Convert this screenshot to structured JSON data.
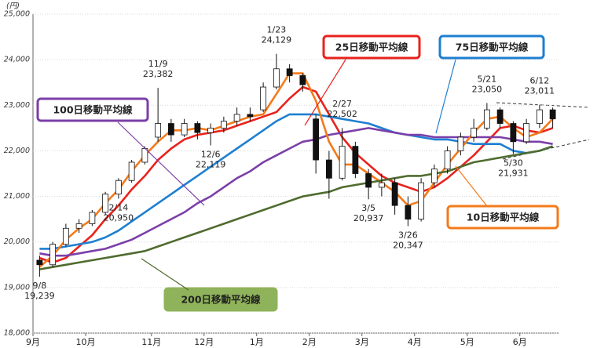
{
  "chart_data": {
    "type": "candlestick",
    "y_label": "(円)",
    "ylim": [
      18000,
      25000
    ],
    "yticks": [
      {
        "value": 18000,
        "label": "18,000"
      },
      {
        "value": 19000,
        "label": "19,000"
      },
      {
        "value": 20000,
        "label": "20,000"
      },
      {
        "value": 21000,
        "label": "21,000"
      },
      {
        "value": 22000,
        "label": "22,000"
      },
      {
        "value": 23000,
        "label": "23,000"
      },
      {
        "value": 24000,
        "label": "24,000"
      },
      {
        "value": 25000,
        "label": "25,000"
      }
    ],
    "grid": true,
    "categories": [
      "9月",
      null,
      null,
      null,
      "10月",
      null,
      null,
      null,
      null,
      "11月",
      null,
      null,
      null,
      "12月",
      null,
      null,
      null,
      "1月",
      null,
      null,
      null,
      "2月",
      null,
      null,
      null,
      "3月",
      null,
      null,
      null,
      "4月",
      null,
      null,
      null,
      "5月",
      null,
      null,
      null,
      "6月",
      null,
      null
    ],
    "ohlc": [
      [
        19600,
        19700,
        19239,
        19500
      ],
      [
        19500,
        20000,
        19450,
        19950
      ],
      [
        19950,
        20400,
        19900,
        20300
      ],
      [
        20300,
        20500,
        20200,
        20400
      ],
      [
        20400,
        20700,
        20350,
        20650
      ],
      [
        20650,
        21100,
        20600,
        21050
      ],
      [
        21050,
        21400,
        20950,
        21350
      ],
      [
        21350,
        21800,
        21300,
        21750
      ],
      [
        21750,
        22100,
        21700,
        22050
      ],
      [
        22300,
        23382,
        22200,
        22600
      ],
      [
        22600,
        22700,
        22200,
        22350
      ],
      [
        22350,
        22700,
        22300,
        22600
      ],
      [
        22600,
        22650,
        22250,
        22400
      ],
      [
        22400,
        22600,
        22119,
        22500
      ],
      [
        22500,
        22750,
        22400,
        22650
      ],
      [
        22650,
        22950,
        22550,
        22800
      ],
      [
        22800,
        22950,
        22650,
        22750
      ],
      [
        22900,
        23500,
        22850,
        23400
      ],
      [
        23400,
        24129,
        23350,
        23800
      ],
      [
        23800,
        23900,
        23500,
        23650
      ],
      [
        23650,
        23700,
        23300,
        23450
      ],
      [
        22700,
        22800,
        21500,
        21800
      ],
      [
        21800,
        22000,
        20950,
        21400
      ],
      [
        21400,
        22502,
        21350,
        22100
      ],
      [
        22100,
        22200,
        21400,
        21500
      ],
      [
        21500,
        21600,
        20937,
        21200
      ],
      [
        21200,
        21500,
        21000,
        21300
      ],
      [
        21300,
        21400,
        20600,
        20800
      ],
      [
        20800,
        21000,
        20347,
        20500
      ],
      [
        20500,
        21400,
        20450,
        21300
      ],
      [
        21300,
        21700,
        21200,
        21600
      ],
      [
        21600,
        22100,
        21500,
        22000
      ],
      [
        22000,
        22400,
        21900,
        22300
      ],
      [
        22300,
        22700,
        22200,
        22500
      ],
      [
        22500,
        23050,
        22450,
        22900
      ],
      [
        22900,
        22950,
        22500,
        22600
      ],
      [
        22600,
        22650,
        21931,
        22200
      ],
      [
        22200,
        22700,
        22150,
        22600
      ],
      [
        22600,
        23011,
        22500,
        22900
      ],
      [
        22900,
        22950,
        22500,
        22700
      ]
    ],
    "series": [
      {
        "name": "25日移動平均線",
        "color": "#e8231c",
        "values": [
          19650,
          19550,
          19650,
          19900,
          20150,
          20500,
          20800,
          21150,
          21450,
          21800,
          22050,
          22250,
          22350,
          22400,
          22450,
          22550,
          22650,
          22750,
          22850,
          23150,
          23400,
          23300,
          22800,
          22300,
          21950,
          21700,
          21450,
          21300,
          21200,
          21100,
          21200,
          21400,
          21650,
          21900,
          22200,
          22500,
          22550,
          22450,
          22400,
          22500
        ]
      },
      {
        "name": "75日移動平均線",
        "color": "#1e7fd0",
        "values": [
          19850,
          19850,
          19900,
          19950,
          20000,
          20100,
          20250,
          20450,
          20650,
          20850,
          21050,
          21250,
          21450,
          21650,
          21850,
          22050,
          22250,
          22450,
          22650,
          22800,
          22800,
          22800,
          22750,
          22700,
          22650,
          22600,
          22500,
          22400,
          22350,
          22300,
          22250,
          22250,
          22200,
          22150,
          22150,
          22150,
          22000,
          21950,
          22000,
          22100
        ]
      },
      {
        "name": "100日移動平均線",
        "color": "#7b3fa8",
        "values": [
          19750,
          19700,
          19700,
          19750,
          19800,
          19850,
          19950,
          20050,
          20200,
          20350,
          20500,
          20650,
          20850,
          21000,
          21200,
          21400,
          21550,
          21750,
          21900,
          22050,
          22200,
          22250,
          22350,
          22400,
          22450,
          22500,
          22450,
          22400,
          22350,
          22350,
          22300,
          22300,
          22300,
          22300,
          22300,
          22300,
          22250,
          22200,
          22200,
          22150
        ]
      },
      {
        "name": "10日移動平均線",
        "color": "#f47a1a",
        "values": [
          19450,
          19700,
          20050,
          20300,
          20500,
          20850,
          21150,
          21550,
          21900,
          22200,
          22450,
          22450,
          22500,
          22450,
          22550,
          22650,
          22750,
          22800,
          23250,
          23700,
          23700,
          23100,
          22200,
          21700,
          21700,
          21500,
          21300,
          21100,
          20800,
          20900,
          21300,
          21700,
          22050,
          22400,
          22700,
          22750,
          22500,
          22300,
          22400,
          22700
        ]
      },
      {
        "name": "200日移動平均線",
        "color": "#4f6b2e",
        "values": [
          19400,
          19450,
          19500,
          19550,
          19600,
          19650,
          19700,
          19750,
          19800,
          19900,
          20000,
          20100,
          20200,
          20300,
          20400,
          20500,
          20600,
          20700,
          20800,
          20900,
          21000,
          21050,
          21100,
          21200,
          21250,
          21300,
          21350,
          21400,
          21450,
          21450,
          21500,
          21550,
          21650,
          21750,
          21800,
          21850,
          21900,
          21950,
          22000,
          22100
        ]
      }
    ],
    "annotations": [
      {
        "date": "9/8",
        "value": 19239,
        "label": "19,239"
      },
      {
        "date": "11/9",
        "value": 23382,
        "label": "23,382"
      },
      {
        "date": "12/6",
        "value": 22119,
        "label": "22,119"
      },
      {
        "date": "1/23",
        "value": 24129,
        "label": "24,129"
      },
      {
        "date": "2/14",
        "value": 20950,
        "label": "20,950"
      },
      {
        "date": "2/27",
        "value": 22502,
        "label": "22,502"
      },
      {
        "date": "3/5",
        "value": 20937,
        "label": "20,937"
      },
      {
        "date": "3/26",
        "value": 20347,
        "label": "20,347"
      },
      {
        "date": "5/21",
        "value": 23050,
        "label": "23,050"
      },
      {
        "date": "5/30",
        "value": 21931,
        "label": "21,931"
      },
      {
        "date": "6/12",
        "value": 23011,
        "label": "23,011"
      }
    ]
  }
}
